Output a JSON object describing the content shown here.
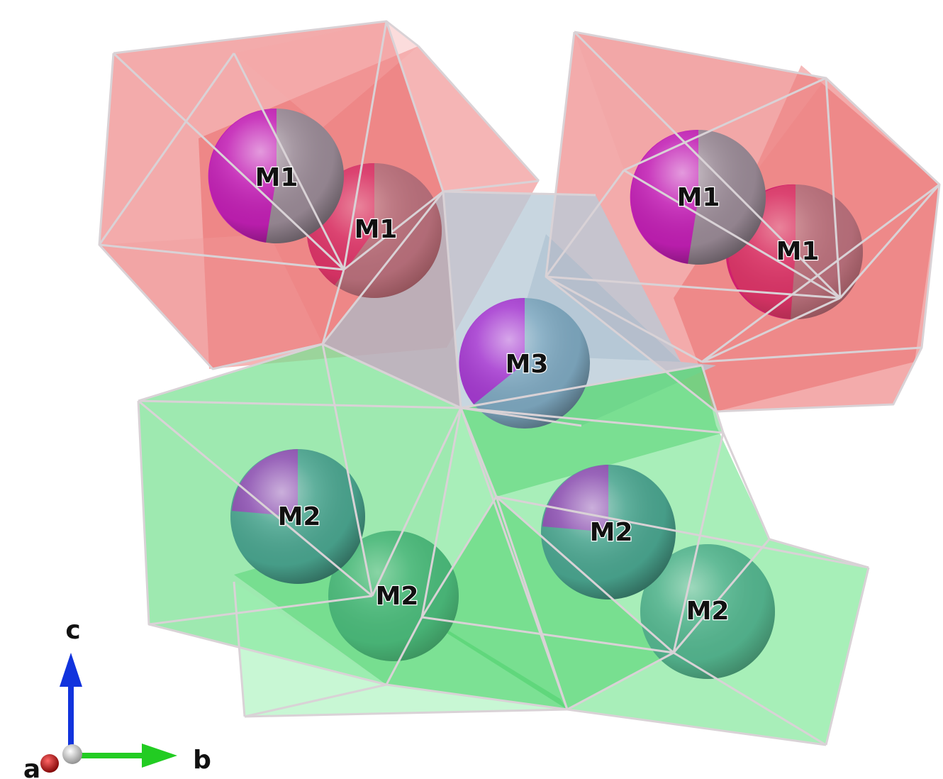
{
  "sites": {
    "m1_a": "M1",
    "m1_b": "M1",
    "m1_c": "M1",
    "m1_d": "M1",
    "m3": "M3",
    "m2_a": "M2",
    "m2_b": "M2",
    "m2_c": "M2",
    "m2_d": "M2"
  },
  "axes": {
    "a": "a",
    "b": "b",
    "c": "c"
  },
  "colors": {
    "m1_polyhedra": "#f08080",
    "m2_polyhedra": "#6fe08a",
    "m3_polyhedron": "#b8cad6",
    "edges": "#d9d2d6",
    "occupancy_magenta": "#c21fb4",
    "occupancy_grey": "#9a8a96",
    "occupancy_teal": "#4aa58f",
    "occupancy_purple": "#8b4fb0",
    "axis_a": "#cc1111",
    "axis_b": "#22cc22",
    "axis_c": "#1133dd"
  }
}
